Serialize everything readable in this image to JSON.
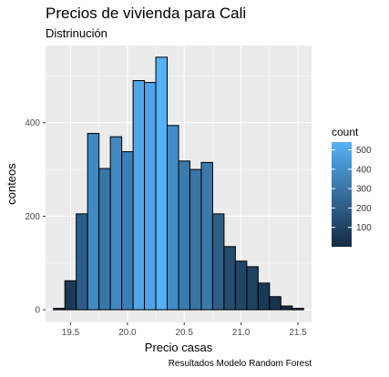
{
  "title": "Precios de vivienda para Cali",
  "subtitle": "Distrinución",
  "caption": "Resultados Modelo Random Forest",
  "colors": {
    "panel_bg": "#EBEBEB",
    "grid": "#FFFFFF",
    "low": "#132B43",
    "high": "#56B1F7",
    "bar_outline": "#000000"
  },
  "chart_data": {
    "type": "bar",
    "bin_starts": [
      19.35,
      19.45,
      19.55,
      19.65,
      19.75,
      19.85,
      19.95,
      20.05,
      20.15,
      20.25,
      20.35,
      20.45,
      20.55,
      20.65,
      20.75,
      20.85,
      20.95,
      21.05,
      21.15,
      21.25,
      21.35,
      21.45
    ],
    "bin_width": 0.1,
    "values": [
      3,
      62,
      205,
      377,
      302,
      370,
      338,
      490,
      486,
      540,
      394,
      318,
      300,
      315,
      205,
      135,
      104,
      92,
      57,
      28,
      8,
      3
    ],
    "xlabel": "Precio casas",
    "ylabel": "conteos",
    "xlim": [
      19.28,
      21.62
    ],
    "ylim": [
      -27,
      565
    ],
    "xticks": [
      19.5,
      20.0,
      20.5,
      21.0,
      21.5
    ],
    "xtick_labels": [
      "19.5",
      "20.0",
      "20.5",
      "21.0",
      "21.5"
    ],
    "yticks": [
      0,
      200,
      400
    ],
    "ytick_labels": [
      "0",
      "200",
      "400"
    ],
    "grid": true,
    "legend": {
      "title": "count",
      "position": "right",
      "range": [
        0,
        540
      ],
      "ticks": [
        100,
        200,
        300,
        400,
        500
      ],
      "tick_labels": [
        "100",
        "200",
        "300",
        "400",
        "500"
      ]
    }
  }
}
